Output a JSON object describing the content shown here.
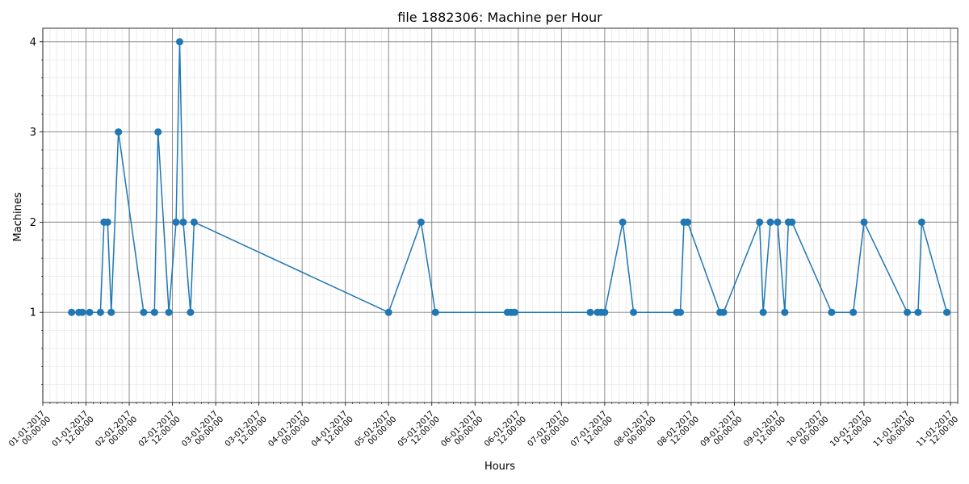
{
  "chart_data": {
    "type": "line",
    "title": "file 1882306: Machine per Hour",
    "xlabel": "Hours",
    "ylabel": "Machines",
    "x_unit": "hours",
    "xlim": [
      "01-01-2017 00:00:00",
      "11-01-2017 14:00:00"
    ],
    "ylim": [
      0.0,
      4.15
    ],
    "yticks": [
      1,
      2,
      3,
      4
    ],
    "xtick_labels": [
      "01-01-2017\n00:00:00",
      "01-01-2017\n12:00:00",
      "02-01-2017\n00:00:00",
      "02-01-2017\n12:00:00",
      "03-01-2017\n00:00:00",
      "03-01-2017\n12:00:00",
      "04-01-2017\n00:00:00",
      "04-01-2017\n12:00:00",
      "05-01-2017\n00:00:00",
      "05-01-2017\n12:00:00",
      "06-01-2017\n00:00:00",
      "06-01-2017\n12:00:00",
      "07-01-2017\n00:00:00",
      "07-01-2017\n12:00:00",
      "08-01-2017\n00:00:00",
      "08-01-2017\n12:00:00",
      "09-01-2017\n00:00:00",
      "09-01-2017\n12:00:00",
      "10-01-2017\n00:00:00",
      "10-01-2017\n12:00:00",
      "11-01-2017\n00:00:00",
      "11-01-2017\n12:00:00"
    ],
    "grid": true,
    "color": "#1f77b4",
    "series": [
      {
        "x": [
          "01-01-2017 08:00",
          "01-01-2017 10:00",
          "01-01-2017 11:00",
          "01-01-2017 13:00",
          "01-01-2017 16:00",
          "01-01-2017 17:00",
          "01-01-2017 18:00",
          "01-01-2017 19:00",
          "01-01-2017 21:00",
          "02-01-2017 04:00",
          "02-01-2017 07:00",
          "02-01-2017 08:00",
          "02-01-2017 11:00",
          "02-01-2017 13:00",
          "02-01-2017 14:00",
          "02-01-2017 15:00",
          "02-01-2017 17:00",
          "02-01-2017 18:00",
          "05-01-2017 00:00",
          "05-01-2017 09:00",
          "05-01-2017 13:00",
          "06-01-2017 09:00",
          "06-01-2017 10:00",
          "06-01-2017 11:00",
          "07-01-2017 08:00",
          "07-01-2017 10:00",
          "07-01-2017 11:00",
          "07-01-2017 12:00",
          "07-01-2017 17:00",
          "07-01-2017 20:00",
          "08-01-2017 08:00",
          "08-01-2017 09:00",
          "08-01-2017 10:00",
          "08-01-2017 11:00",
          "08-01-2017 20:00",
          "08-01-2017 21:00",
          "09-01-2017 07:00",
          "09-01-2017 08:00",
          "09-01-2017 10:00",
          "09-01-2017 12:00",
          "09-01-2017 14:00",
          "09-01-2017 15:00",
          "09-01-2017 16:00",
          "10-01-2017 03:00",
          "10-01-2017 09:00",
          "10-01-2017 12:00",
          "11-01-2017 00:00",
          "11-01-2017 03:00",
          "11-01-2017 04:00",
          "11-01-2017 11:00"
        ],
        "y": [
          1,
          1,
          1,
          1,
          1,
          2,
          2,
          1,
          3,
          1,
          1,
          3,
          1,
          2,
          4,
          2,
          1,
          2,
          1,
          2,
          1,
          1,
          1,
          1,
          1,
          1,
          1,
          1,
          2,
          1,
          1,
          1,
          2,
          2,
          1,
          1,
          2,
          1,
          2,
          2,
          1,
          2,
          2,
          1,
          1,
          2,
          1,
          1,
          2,
          1
        ]
      }
    ]
  }
}
